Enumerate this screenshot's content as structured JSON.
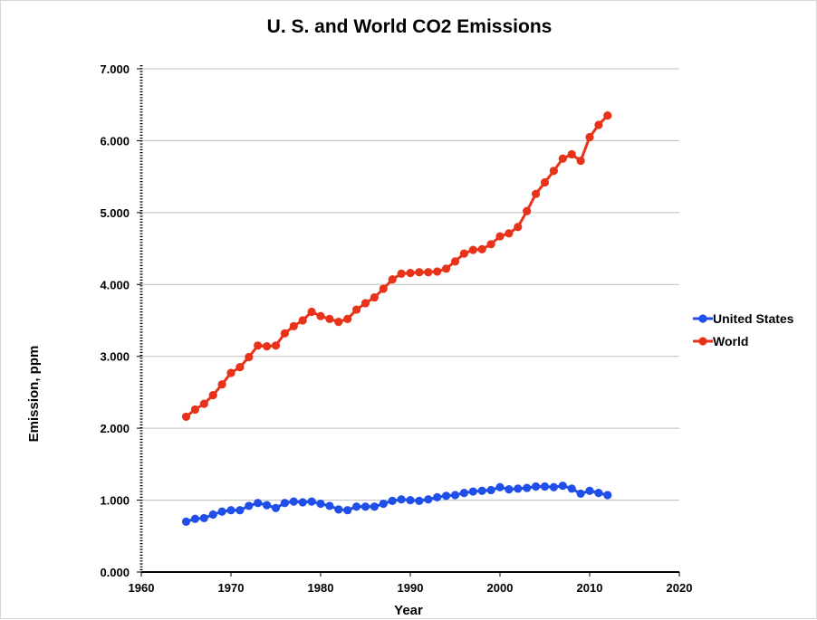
{
  "chart_data": {
    "type": "line",
    "title": "U. S. and World CO2 Emissions",
    "xlabel": "Year",
    "ylabel": "Emission, ppm",
    "xlim": [
      1960,
      2020
    ],
    "ylim": [
      0,
      7
    ],
    "x_ticks": [
      1960,
      1970,
      1980,
      1990,
      2000,
      2010,
      2020
    ],
    "y_ticks": [
      0,
      1,
      2,
      3,
      4,
      5,
      6,
      7
    ],
    "y_tick_labels": [
      "0.000",
      "1.000",
      "2.000",
      "3.000",
      "4.000",
      "5.000",
      "6.000",
      "7.000"
    ],
    "grid": "horizontal",
    "legend_position": "right",
    "x": [
      1965,
      1966,
      1967,
      1968,
      1969,
      1970,
      1971,
      1972,
      1973,
      1974,
      1975,
      1976,
      1977,
      1978,
      1979,
      1980,
      1981,
      1982,
      1983,
      1984,
      1985,
      1986,
      1987,
      1988,
      1989,
      1990,
      1991,
      1992,
      1993,
      1994,
      1995,
      1996,
      1997,
      1998,
      1999,
      2000,
      2001,
      2002,
      2003,
      2004,
      2005,
      2006,
      2007,
      2008,
      2009,
      2010,
      2011,
      2012
    ],
    "series": [
      {
        "name": "United States",
        "color": "#1f4fe8",
        "values": [
          0.7,
          0.74,
          0.75,
          0.8,
          0.84,
          0.86,
          0.86,
          0.92,
          0.96,
          0.93,
          0.89,
          0.96,
          0.98,
          0.97,
          0.98,
          0.95,
          0.92,
          0.87,
          0.86,
          0.91,
          0.91,
          0.91,
          0.95,
          0.99,
          1.01,
          1.0,
          0.99,
          1.01,
          1.04,
          1.06,
          1.07,
          1.1,
          1.12,
          1.13,
          1.14,
          1.18,
          1.15,
          1.16,
          1.17,
          1.19,
          1.19,
          1.18,
          1.2,
          1.16,
          1.09,
          1.13,
          1.1,
          1.07
        ]
      },
      {
        "name": "World",
        "color": "#e8321a",
        "values": [
          2.16,
          2.26,
          2.34,
          2.46,
          2.61,
          2.77,
          2.85,
          2.99,
          3.15,
          3.14,
          3.15,
          3.32,
          3.42,
          3.5,
          3.62,
          3.56,
          3.52,
          3.48,
          3.52,
          3.65,
          3.74,
          3.82,
          3.94,
          4.07,
          4.15,
          4.16,
          4.17,
          4.17,
          4.18,
          4.22,
          4.32,
          4.43,
          4.48,
          4.49,
          4.56,
          4.67,
          4.71,
          4.8,
          5.02,
          5.26,
          5.42,
          5.58,
          5.75,
          5.81,
          5.72,
          6.05,
          6.22,
          6.35
        ]
      }
    ]
  }
}
